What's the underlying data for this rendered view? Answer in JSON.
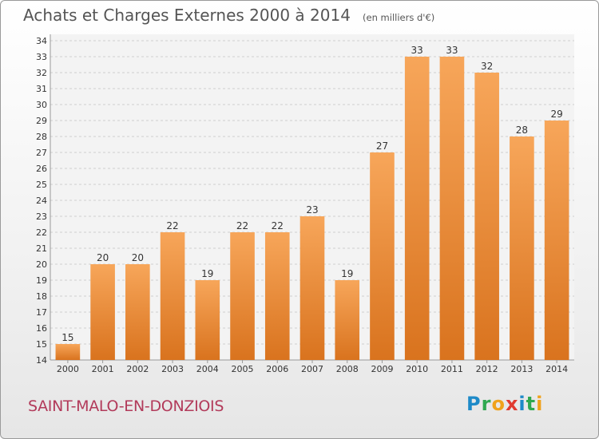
{
  "header": {
    "title": "Achats et Charges Externes 2000 à 2014",
    "unit": "(en milliers d'€)"
  },
  "footer": {
    "commune": "SAINT-MALO-EN-DONZIOIS",
    "logo_text": "Proxiti"
  },
  "colors": {
    "bar_top": "#f7a65a",
    "bar_bottom": "#d9731e",
    "title": "#555555",
    "commune": "#b23a5a",
    "logo_letters": [
      "#1e8ac8",
      "#2fa84f",
      "#f0a21b",
      "#e03a2f",
      "#1e8ac8",
      "#2fa84f",
      "#f0a21b"
    ]
  },
  "chart_data": {
    "type": "bar",
    "title": "Achats et Charges Externes 2000 à 2014",
    "subtitle": "(en milliers d'€)",
    "categories": [
      "2000",
      "2001",
      "2002",
      "2003",
      "2004",
      "2005",
      "2006",
      "2007",
      "2008",
      "2009",
      "2010",
      "2011",
      "2012",
      "2013",
      "2014"
    ],
    "values": [
      15,
      20,
      20,
      22,
      19,
      22,
      22,
      23,
      19,
      27,
      33,
      33,
      32,
      28,
      29
    ],
    "ylim": [
      14,
      34
    ],
    "yticks": [
      14,
      15,
      16,
      17,
      18,
      19,
      20,
      21,
      22,
      23,
      24,
      25,
      26,
      27,
      28,
      29,
      30,
      31,
      32,
      33,
      34
    ],
    "grid": true,
    "data_labels": true,
    "legend": "none"
  }
}
